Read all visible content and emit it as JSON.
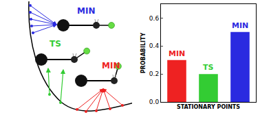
{
  "chart_data": {
    "type": "bar",
    "categories": [
      "MIN",
      "TS",
      "MIN"
    ],
    "values": [
      0.3,
      0.2,
      0.5
    ],
    "colors": [
      "#ee2222",
      "#33cc33",
      "#2a2ae0"
    ],
    "x_label": "STATIONARY POINTS",
    "y_label": "PROBABILITY",
    "ylim": [
      0,
      0.7
    ],
    "yticks": [
      {
        "value": 0,
        "label": "0.0"
      },
      0.2,
      0.4,
      0.6
    ],
    "tick_labels": "y",
    "grid": false
  },
  "diagram": {
    "labels": [
      {
        "text": "MIN",
        "color": "#2a2ae0"
      },
      {
        "text": "TS",
        "color": "#33cc33"
      },
      {
        "text": "MIN",
        "color": "#ee2222"
      }
    ]
  }
}
